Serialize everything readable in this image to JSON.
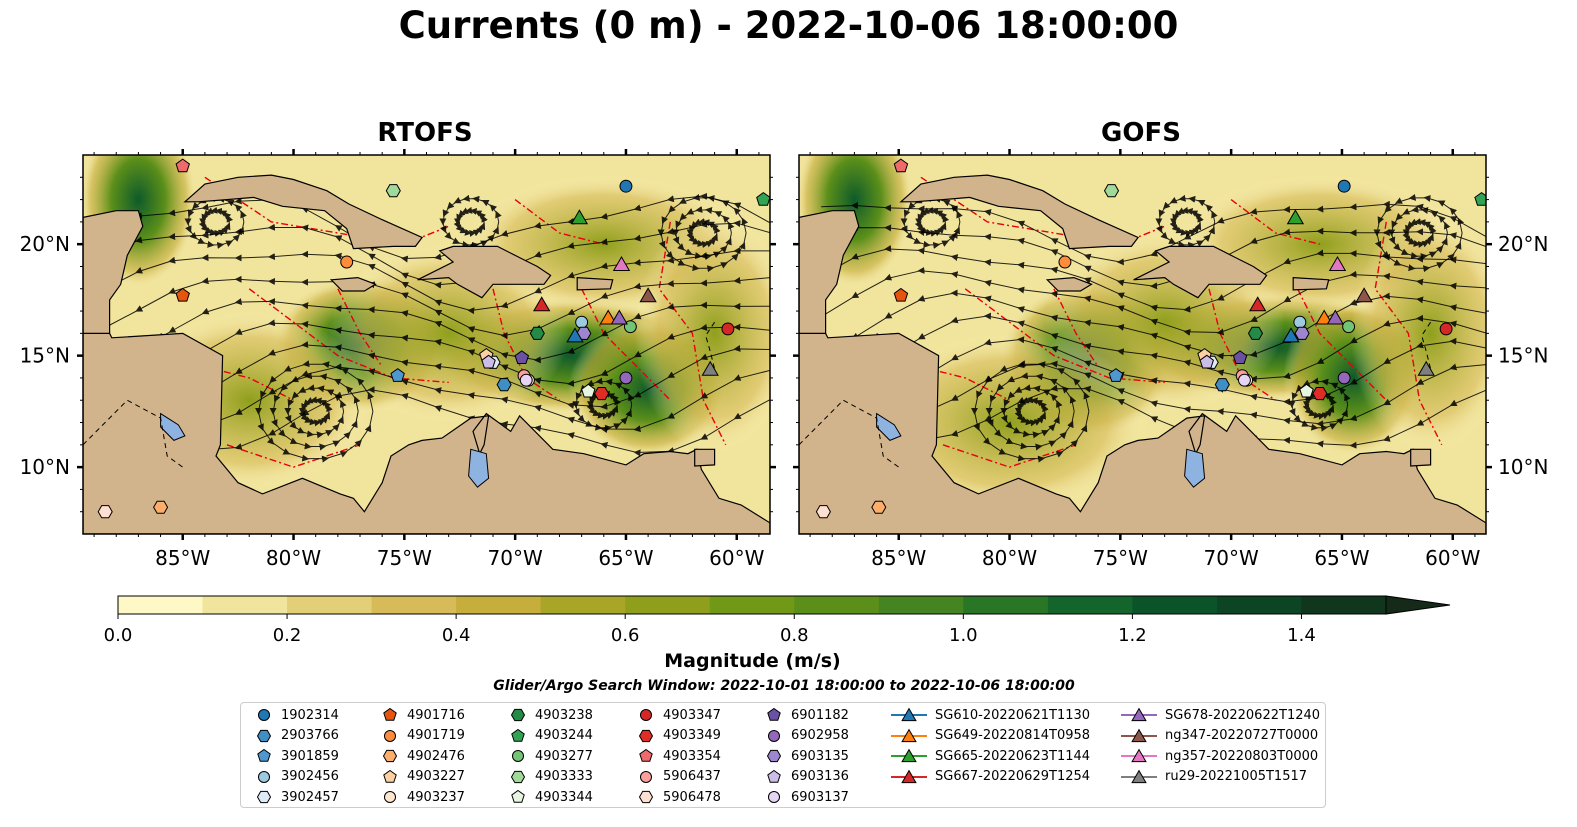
{
  "title": "Currents (0 m) - 2022-10-06 18:00:00",
  "panels": [
    {
      "title": "RTOFS"
    },
    {
      "title": "GOFS"
    }
  ],
  "axes": {
    "x_ticks": [
      "85°W",
      "80°W",
      "75°W",
      "70°W",
      "65°W",
      "60°W"
    ],
    "y_ticks": [
      "20°N",
      "15°N",
      "10°N"
    ],
    "lon_range": [
      -89.5,
      -58.5
    ],
    "lat_range": [
      7,
      24
    ]
  },
  "colorbar": {
    "label": "Magnitude (m/s)",
    "ticks": [
      "0.0",
      "0.2",
      "0.4",
      "0.6",
      "0.8",
      "1.0",
      "1.2",
      "1.4"
    ],
    "range": [
      0,
      1.5
    ],
    "extend": "max",
    "colors": [
      "#fdf8c5",
      "#f1e49c",
      "#e2cf77",
      "#d6bb58",
      "#c6ae3c",
      "#a9a527",
      "#8f9f1c",
      "#719816",
      "#5b8f1a",
      "#448521",
      "#2a7627",
      "#13652c",
      "#0b5429",
      "#0c4424",
      "#10361e",
      "#152a19"
    ]
  },
  "colors": {
    "land": "#d2b48c",
    "lake": "#8eb3e1",
    "eez": "#e8000b",
    "streamline": "#000000"
  },
  "search_window": "Glider/Argo Search Window: 2022-10-01 18:00:00 to 2022-10-06 18:00:00",
  "legend": {
    "columns": [
      [
        {
          "label": "1902314",
          "marker": "circle",
          "color": "#1f77b4"
        },
        {
          "label": "2903766",
          "marker": "hexagon",
          "color": "#3f8fc4"
        },
        {
          "label": "3901859",
          "marker": "pentagon",
          "color": "#4f97d0"
        },
        {
          "label": "3902456",
          "marker": "circle",
          "color": "#9ecae1"
        },
        {
          "label": "3902457",
          "marker": "hexagon",
          "color": "#deebf7"
        }
      ],
      [
        {
          "label": "4901716",
          "marker": "pentagon",
          "color": "#e6550d"
        },
        {
          "label": "4901719",
          "marker": "circle",
          "color": "#fd8d3c"
        },
        {
          "label": "4902476",
          "marker": "hexagon",
          "color": "#fdae6b"
        },
        {
          "label": "4903227",
          "marker": "pentagon",
          "color": "#fdd0a2"
        },
        {
          "label": "4903237",
          "marker": "circle",
          "color": "#fee6ce"
        }
      ],
      [
        {
          "label": "4903238",
          "marker": "hexagon",
          "color": "#238b45"
        },
        {
          "label": "4903244",
          "marker": "pentagon",
          "color": "#31a354"
        },
        {
          "label": "4903277",
          "marker": "circle",
          "color": "#74c476"
        },
        {
          "label": "4903333",
          "marker": "hexagon",
          "color": "#a1d99b"
        },
        {
          "label": "4903344",
          "marker": "pentagon",
          "color": "#e5f5e0"
        }
      ],
      [
        {
          "label": "4903347",
          "marker": "circle",
          "color": "#d62728"
        },
        {
          "label": "4903349",
          "marker": "hexagon",
          "color": "#de2d26"
        },
        {
          "label": "4903354",
          "marker": "pentagon",
          "color": "#ef6a6a"
        },
        {
          "label": "5906437",
          "marker": "circle",
          "color": "#fc9f9a"
        },
        {
          "label": "5906478",
          "marker": "hexagon",
          "color": "#fee0d2"
        }
      ],
      [
        {
          "label": "6901182",
          "marker": "pentagon",
          "color": "#6a51a3"
        },
        {
          "label": "6902958",
          "marker": "circle",
          "color": "#9467bd"
        },
        {
          "label": "6903135",
          "marker": "hexagon",
          "color": "#9e85cf"
        },
        {
          "label": "6903136",
          "marker": "pentagon",
          "color": "#cbbce8"
        },
        {
          "label": "6903137",
          "marker": "circle",
          "color": "#e6d4f5"
        }
      ],
      [
        {
          "label": "SG610-20220621T1130",
          "marker": "triangle",
          "color": "#1f77b4"
        },
        {
          "label": "SG649-20220814T0958",
          "marker": "triangle",
          "color": "#ff7f0e"
        },
        {
          "label": "SG665-20220623T1144",
          "marker": "triangle",
          "color": "#2ca02c"
        },
        {
          "label": "SG667-20220629T1254",
          "marker": "triangle",
          "color": "#d62728"
        }
      ],
      [
        {
          "label": "SG678-20220622T1240",
          "marker": "triangle",
          "color": "#9467bd"
        },
        {
          "label": "ng347-20220727T0000",
          "marker": "triangle",
          "color": "#8c564b"
        },
        {
          "label": "ng357-20220803T0000",
          "marker": "triangle",
          "color": "#e377c2"
        },
        {
          "label": "ru29-20221005T1517",
          "marker": "triangle",
          "color": "#7f7f7f"
        }
      ]
    ]
  },
  "markers_rtofs": [
    {
      "id": "1902314",
      "lon": -65.0,
      "lat": 22.6
    },
    {
      "id": "2903766",
      "lon": -70.5,
      "lat": 13.7
    },
    {
      "id": "3901859",
      "lon": -75.3,
      "lat": 14.1
    },
    {
      "id": "3902456",
      "lon": -67.0,
      "lat": 16.5
    },
    {
      "id": "3902457",
      "lon": -71.0,
      "lat": 14.7
    },
    {
      "id": "4901716",
      "lon": -85.0,
      "lat": 17.7
    },
    {
      "id": "4901719",
      "lon": -77.6,
      "lat": 19.2
    },
    {
      "id": "4902476",
      "lon": -86.0,
      "lat": 8.2
    },
    {
      "id": "4903227",
      "lon": -71.3,
      "lat": 15.0
    },
    {
      "id": "4903237",
      "lon": -69.4,
      "lat": 13.9
    },
    {
      "id": "4903238",
      "lon": -69.0,
      "lat": 16.0
    },
    {
      "id": "4903244",
      "lon": -58.8,
      "lat": 22.0
    },
    {
      "id": "4903277",
      "lon": -64.8,
      "lat": 16.3
    },
    {
      "id": "4903333",
      "lon": -75.5,
      "lat": 22.4
    },
    {
      "id": "4903344",
      "lon": -66.7,
      "lat": 13.4
    },
    {
      "id": "4903347",
      "lon": -60.4,
      "lat": 16.2
    },
    {
      "id": "4903349",
      "lon": -66.1,
      "lat": 13.3
    },
    {
      "id": "4903354",
      "lon": -85.0,
      "lat": 23.5
    },
    {
      "id": "5906437",
      "lon": -69.6,
      "lat": 14.1
    },
    {
      "id": "5906478",
      "lon": -88.5,
      "lat": 8.0
    },
    {
      "id": "6901182",
      "lon": -69.7,
      "lat": 14.9
    },
    {
      "id": "6902958",
      "lon": -65.0,
      "lat": 14.0
    },
    {
      "id": "6903135",
      "lon": -66.9,
      "lat": 16.0
    },
    {
      "id": "6903136",
      "lon": -71.2,
      "lat": 14.7
    },
    {
      "id": "6903137",
      "lon": -69.5,
      "lat": 13.9
    }
  ],
  "gliders_rtofs": [
    {
      "id": "SG610-20220621T1130",
      "lon": -67.3,
      "lat": 15.9
    },
    {
      "id": "SG649-20220814T0958",
      "lon": -65.8,
      "lat": 16.7
    },
    {
      "id": "SG665-20220623T1144",
      "lon": -67.1,
      "lat": 21.2
    },
    {
      "id": "SG667-20220629T1254",
      "lon": -68.8,
      "lat": 17.3
    },
    {
      "id": "SG678-20220622T1240",
      "lon": -65.3,
      "lat": 16.7
    },
    {
      "id": "ng347-20220727T0000",
      "lon": -64.0,
      "lat": 17.7
    },
    {
      "id": "ng357-20220803T0000",
      "lon": -65.2,
      "lat": 19.1
    },
    {
      "id": "ru29-20221005T1517",
      "lon": -61.2,
      "lat": 14.4
    }
  ]
}
